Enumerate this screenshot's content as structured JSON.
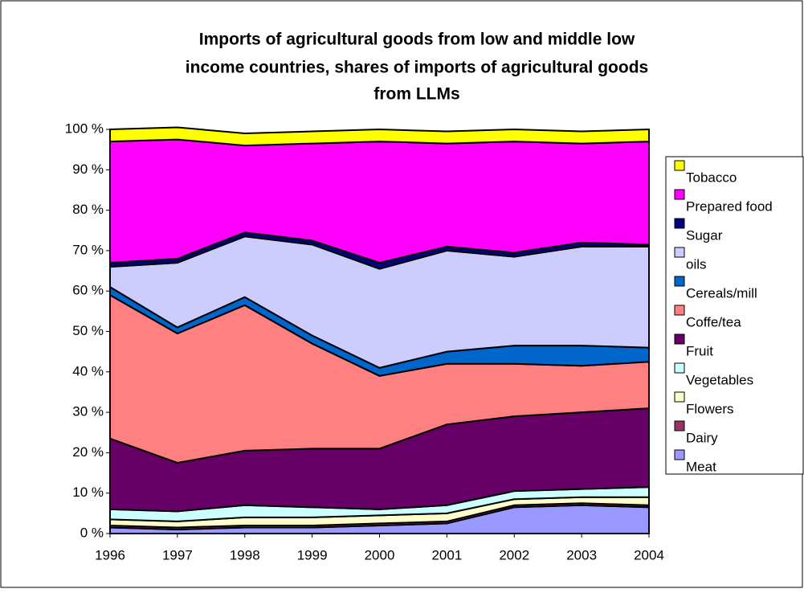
{
  "chart_data": {
    "type": "stacked-area",
    "title": [
      "Imports of agricultural goods from low and middle low",
      "income countries, shares of imports of agricultural goods",
      "from LLMs"
    ],
    "categories": [
      "1996",
      "1997",
      "1998",
      "1999",
      "2000",
      "2001",
      "2002",
      "2003",
      "2004"
    ],
    "series": [
      {
        "name": "Meat",
        "color": "#9999ff",
        "values": [
          1.5,
          1,
          1.5,
          1.5,
          2,
          2.5,
          6.5,
          7,
          6.5
        ]
      },
      {
        "name": "Dairy",
        "color": "#993366",
        "values": [
          0.5,
          0.5,
          0.5,
          0.5,
          0.5,
          0.5,
          0.5,
          0.5,
          0.5
        ]
      },
      {
        "name": "Flowers",
        "color": "#ffffcc",
        "values": [
          1.5,
          1.5,
          2,
          2,
          2,
          2,
          1.5,
          1.5,
          2
        ]
      },
      {
        "name": "Vegetables",
        "color": "#ccffff",
        "values": [
          2.5,
          2.5,
          3,
          2.5,
          1.5,
          2,
          2,
          2,
          2.5
        ]
      },
      {
        "name": "Fruit",
        "color": "#660066",
        "values": [
          17.5,
          12,
          13.5,
          14.5,
          15,
          20,
          18.5,
          19,
          19.5
        ]
      },
      {
        "name": "Coffe/tea",
        "color": "#ff8080",
        "values": [
          35.5,
          32,
          36,
          26,
          18,
          15,
          13,
          11.5,
          11.5
        ]
      },
      {
        "name": "Cereals/mill",
        "color": "#0066cc",
        "values": [
          2,
          1.5,
          2,
          2,
          2,
          3,
          4.5,
          5,
          3.5
        ]
      },
      {
        "name": "oils",
        "color": "#ccccff",
        "values": [
          5,
          16,
          15,
          22.5,
          24.5,
          25,
          22,
          24.5,
          25
        ]
      },
      {
        "name": "Sugar",
        "color": "#000080",
        "values": [
          1,
          1,
          1,
          1,
          1.5,
          1,
          1,
          1,
          0.5
        ]
      },
      {
        "name": "Prepared food",
        "color": "#ff00ff",
        "values": [
          30,
          29.5,
          21.5,
          24,
          30,
          25.5,
          27.5,
          24.5,
          25.5
        ]
      },
      {
        "name": "Tobacco",
        "color": "#ffff00",
        "values": [
          3,
          3,
          3,
          3,
          3,
          3,
          3,
          3,
          3
        ]
      }
    ],
    "ylim": [
      0,
      100
    ],
    "yticks": [
      {
        "value": 0,
        "label": "0 %"
      },
      {
        "value": 10,
        "label": "10 %"
      },
      {
        "value": 20,
        "label": "20 %"
      },
      {
        "value": 30,
        "label": "30 %"
      },
      {
        "value": 40,
        "label": "40 %"
      },
      {
        "value": 50,
        "label": "50 %"
      },
      {
        "value": 60,
        "label": "60 %"
      },
      {
        "value": 70,
        "label": "70 %"
      },
      {
        "value": 80,
        "label": "80 %"
      },
      {
        "value": 90,
        "label": "90 %"
      },
      {
        "value": 100,
        "label": "100 %"
      }
    ],
    "legend": "right"
  }
}
